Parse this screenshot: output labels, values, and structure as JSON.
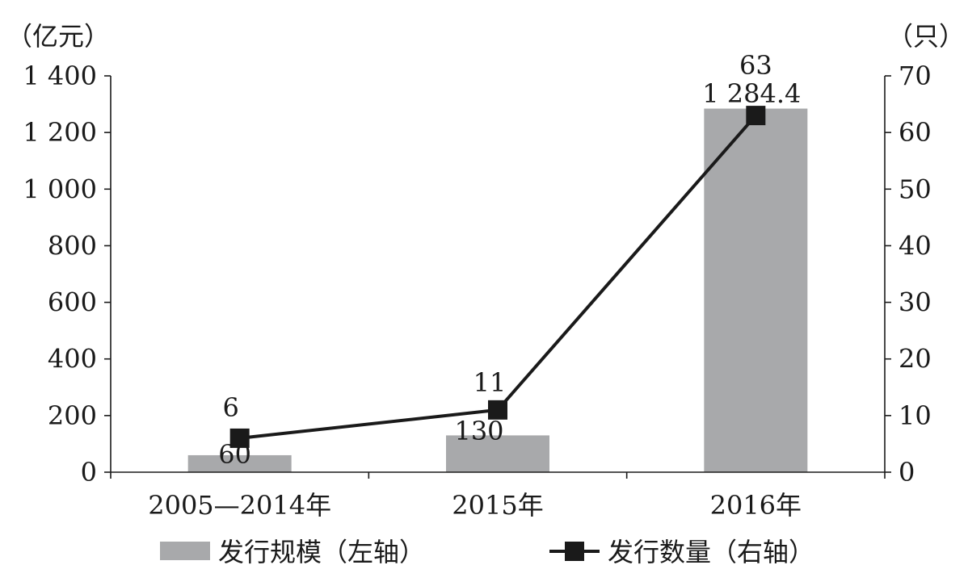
{
  "chart_data": {
    "type": "bar",
    "categories": [
      "2005—2014年",
      "2015年",
      "2016年"
    ],
    "series": [
      {
        "name": "发行规模（左轴）",
        "type": "bar",
        "axis": "left",
        "values": [
          60,
          130,
          1284.4
        ],
        "value_labels": [
          "60",
          "130",
          "1 284.4"
        ],
        "color": "#a8a9ab"
      },
      {
        "name": "发行数量（右轴）",
        "type": "line",
        "axis": "right",
        "marker": "square",
        "values": [
          6,
          11,
          63
        ],
        "value_labels": [
          "6",
          "11",
          "63"
        ],
        "color": "#1a1a1a"
      }
    ],
    "left_axis": {
      "unit": "（亿元）",
      "ylim": [
        0,
        1400
      ],
      "ticks": [
        0,
        200,
        400,
        600,
        800,
        1000,
        1200,
        1400
      ],
      "tick_labels": [
        "0",
        "200",
        "400",
        "600",
        "800",
        "1 000",
        "1 200",
        "1 400"
      ]
    },
    "right_axis": {
      "unit": "（只）",
      "ylim": [
        0,
        70
      ],
      "ticks": [
        0,
        10,
        20,
        30,
        40,
        50,
        60,
        70
      ],
      "tick_labels": [
        "0",
        "10",
        "20",
        "30",
        "40",
        "50",
        "60",
        "70"
      ]
    },
    "grid": false,
    "legend_position": "bottom"
  }
}
